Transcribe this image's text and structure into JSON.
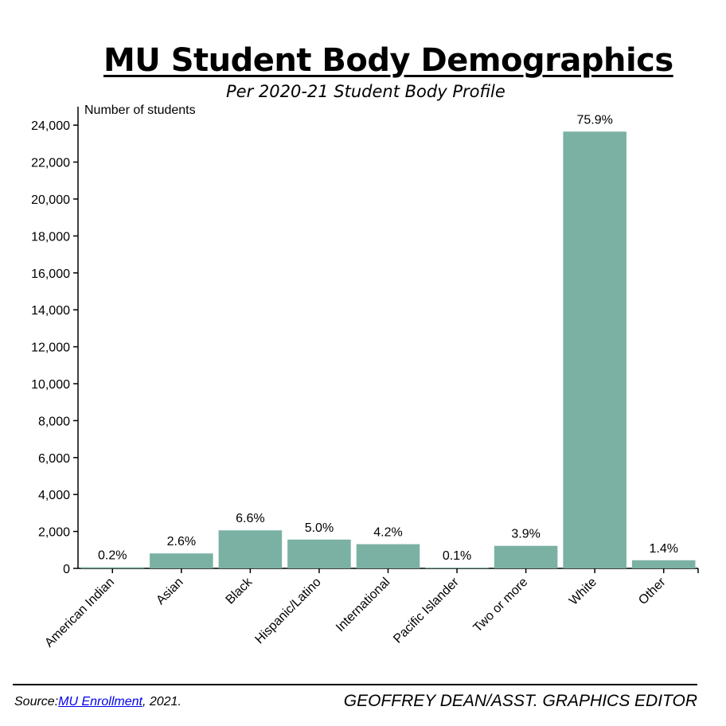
{
  "header": {
    "title": "MU Student Body Demographics",
    "subtitle": "Per 2020-21 Student Body Profile"
  },
  "footer": {
    "source_prefix": "Source:",
    "source_link": "MU Enrollment",
    "source_suffix": ", 2021.",
    "credit": "GEOFFREY DEAN/ASST. GRAPHICS EDITOR"
  },
  "colors": {
    "bar": "#7bb1a3",
    "axis": "#000000"
  },
  "chart_data": {
    "type": "bar",
    "title": "MU Student Body Demographics",
    "subtitle": "Per 2020-21 Student Body Profile",
    "xlabel": "",
    "ylabel": "Number of students",
    "ylim": [
      0,
      25000
    ],
    "yticks": [
      0,
      2000,
      4000,
      6000,
      8000,
      10000,
      12000,
      14000,
      16000,
      18000,
      20000,
      22000,
      24000
    ],
    "ytick_labels": [
      "0",
      "2,000",
      "4,000",
      "6,000",
      "8,000",
      "10,000",
      "12,000",
      "14,000",
      "16,000",
      "18,000",
      "20,000",
      "22,000",
      "24,000"
    ],
    "grid": false,
    "categories": [
      "American Indian",
      "Asian",
      "Black",
      "Hispanic/Latino",
      "International",
      "Pacific Islander",
      "Two or more",
      "White",
      "Other"
    ],
    "values": [
      60,
      810,
      2060,
      1560,
      1310,
      30,
      1220,
      23650,
      440
    ],
    "labels": [
      "0.2%",
      "2.6%",
      "6.6%",
      "5.0%",
      "4.2%",
      "0.1%",
      "3.9%",
      "75.9%",
      "1.4%"
    ]
  }
}
